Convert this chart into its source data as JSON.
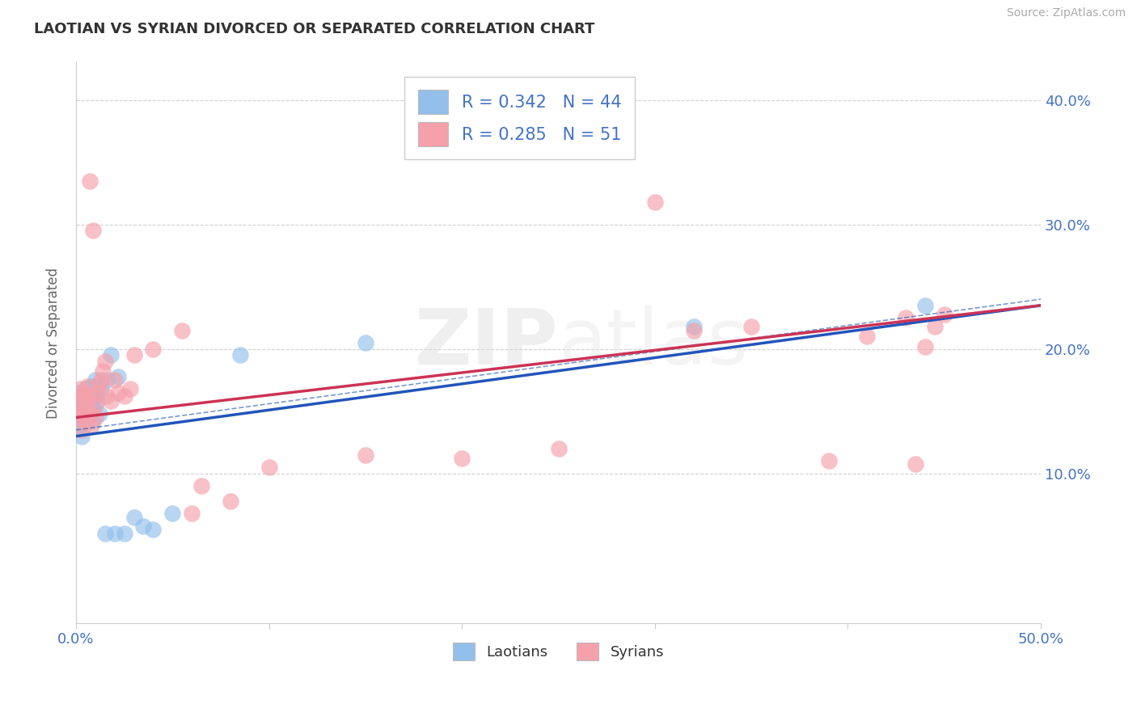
{
  "title": "LAOTIAN VS SYRIAN DIVORCED OR SEPARATED CORRELATION CHART",
  "source_text": "Source: ZipAtlas.com",
  "label_laotian": "Laotians",
  "label_syrian": "Syrians",
  "ylabel": "Divorced or Separated",
  "xlim": [
    0.0,
    0.5
  ],
  "ylim": [
    -0.02,
    0.43
  ],
  "xticks": [
    0.0,
    0.1,
    0.2,
    0.3,
    0.4,
    0.5
  ],
  "yticks": [
    0.1,
    0.2,
    0.3,
    0.4
  ],
  "ytick_labels": [
    "10.0%",
    "20.0%",
    "30.0%",
    "40.0%"
  ],
  "xtick_labels": [
    "0.0%",
    "",
    "",
    "",
    "",
    "50.0%"
  ],
  "color_laotian": "#92C0EB",
  "color_syrian": "#F5A0AA",
  "line_color_laotian": "#2255BB",
  "line_color_syrian": "#CC3355",
  "R_laotian": 0.342,
  "N_laotian": 44,
  "R_syrian": 0.285,
  "N_syrian": 51,
  "trend_laotian_x0": 0.0,
  "trend_laotian_y0": 0.13,
  "trend_laotian_x1": 0.5,
  "trend_laotian_y1": 0.235,
  "trend_syrian_x0": 0.0,
  "trend_syrian_y0": 0.145,
  "trend_syrian_x1": 0.5,
  "trend_syrian_y1": 0.235,
  "laotian_x": [
    0.001,
    0.001,
    0.001,
    0.002,
    0.002,
    0.002,
    0.003,
    0.003,
    0.003,
    0.003,
    0.004,
    0.004,
    0.004,
    0.005,
    0.005,
    0.005,
    0.005,
    0.006,
    0.006,
    0.007,
    0.007,
    0.008,
    0.008,
    0.009,
    0.009,
    0.01,
    0.01,
    0.011,
    0.012,
    0.013,
    0.015,
    0.016,
    0.018,
    0.02,
    0.022,
    0.025,
    0.03,
    0.035,
    0.04,
    0.05,
    0.085,
    0.15,
    0.32,
    0.44
  ],
  "laotian_y": [
    0.155,
    0.15,
    0.165,
    0.16,
    0.145,
    0.138,
    0.152,
    0.148,
    0.14,
    0.13,
    0.162,
    0.155,
    0.145,
    0.168,
    0.158,
    0.15,
    0.14,
    0.165,
    0.148,
    0.155,
    0.145,
    0.17,
    0.158,
    0.152,
    0.142,
    0.175,
    0.162,
    0.158,
    0.148,
    0.168,
    0.052,
    0.175,
    0.195,
    0.052,
    0.178,
    0.052,
    0.065,
    0.058,
    0.055,
    0.068,
    0.195,
    0.205,
    0.218,
    0.235
  ],
  "syrian_x": [
    0.001,
    0.001,
    0.002,
    0.002,
    0.003,
    0.003,
    0.003,
    0.004,
    0.004,
    0.005,
    0.005,
    0.006,
    0.006,
    0.007,
    0.007,
    0.008,
    0.008,
    0.009,
    0.01,
    0.01,
    0.011,
    0.012,
    0.013,
    0.014,
    0.015,
    0.016,
    0.018,
    0.02,
    0.022,
    0.025,
    0.028,
    0.03,
    0.04,
    0.055,
    0.06,
    0.065,
    0.08,
    0.1,
    0.15,
    0.2,
    0.25,
    0.3,
    0.32,
    0.35,
    0.39,
    0.41,
    0.43,
    0.435,
    0.44,
    0.445,
    0.45
  ],
  "syrian_y": [
    0.158,
    0.148,
    0.168,
    0.145,
    0.162,
    0.152,
    0.135,
    0.165,
    0.148,
    0.158,
    0.142,
    0.17,
    0.152,
    0.335,
    0.148,
    0.162,
    0.138,
    0.295,
    0.155,
    0.145,
    0.165,
    0.172,
    0.175,
    0.182,
    0.19,
    0.162,
    0.158,
    0.175,
    0.165,
    0.162,
    0.168,
    0.195,
    0.2,
    0.215,
    0.068,
    0.09,
    0.078,
    0.105,
    0.115,
    0.112,
    0.12,
    0.318,
    0.215,
    0.218,
    0.11,
    0.21,
    0.225,
    0.108,
    0.202,
    0.218,
    0.228
  ]
}
